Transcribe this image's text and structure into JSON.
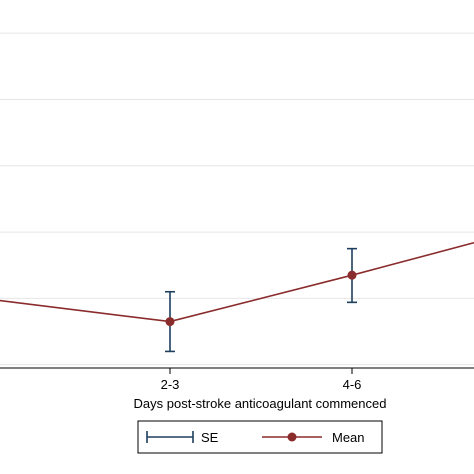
{
  "chart_data": {
    "type": "line",
    "categories": [
      "",
      "2-3",
      "4-6",
      ""
    ],
    "series": [
      {
        "name": "Mean",
        "values": [
          0.99,
          0.65,
          1.35,
          2.08
        ],
        "se_low": [
          null,
          0.2,
          0.94,
          null
        ],
        "se_high": [
          null,
          1.1,
          1.75,
          null
        ]
      }
    ],
    "xlabel": "Days post-stroke anticoagulant commenced",
    "ylabel": "",
    "ylim": [
      -0.05,
      5.5
    ],
    "grid": true,
    "legend": {
      "position": "bottom",
      "entries": [
        {
          "label": "SE",
          "symbol": "capped-range"
        },
        {
          "label": "Mean",
          "symbol": "line-marker"
        }
      ]
    },
    "colors": {
      "mean_line": "#8B2C2C",
      "marker": "#8B2C2C",
      "error_bar": "#1F3F5F",
      "grid": "#e6e6e6",
      "axis": "#000000"
    }
  }
}
